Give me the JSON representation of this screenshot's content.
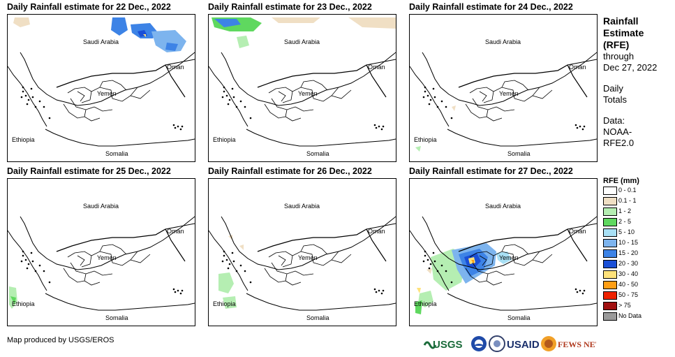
{
  "panels": [
    {
      "title": "Daily Rainfall estimate for 22 Dec., 2022"
    },
    {
      "title": "Daily Rainfall estimate for 23 Dec., 2022"
    },
    {
      "title": "Daily Rainfall estimate for 24 Dec., 2022"
    },
    {
      "title": "Daily Rainfall estimate for 25 Dec., 2022"
    },
    {
      "title": "Daily Rainfall estimate for 26 Dec., 2022"
    },
    {
      "title": "Daily Rainfall estimate for 27 Dec., 2022"
    }
  ],
  "map_labels": {
    "saudi": "Saudi Arabia",
    "oman": "Oman",
    "yemen": "Yemen",
    "ethiopia": "Ethiopia",
    "somalia": "Somalia"
  },
  "sidebar": {
    "title_line1": "Rainfall",
    "title_line2": "Estimate",
    "title_line3": "(RFE)",
    "through": "through",
    "date": "Dec 27, 2022",
    "daily": "Daily",
    "totals": "Totals",
    "data_label": "Data:",
    "data_src1": "NOAA-",
    "data_src2": "RFE2.0"
  },
  "legend": {
    "title": "RFE (mm)",
    "items": [
      {
        "label": "0 - 0.1",
        "color": "#ffffff"
      },
      {
        "label": "0.1 - 1",
        "color": "#f0dfc4"
      },
      {
        "label": "1 - 2",
        "color": "#b5eeb2"
      },
      {
        "label": "2 - 5",
        "color": "#5fd85f"
      },
      {
        "label": "5 - 10",
        "color": "#a8e0f5"
      },
      {
        "label": "10 - 15",
        "color": "#7db4ee"
      },
      {
        "label": "15 - 20",
        "color": "#3d83e6"
      },
      {
        "label": "20 - 30",
        "color": "#1a4fd6"
      },
      {
        "label": "30 - 40",
        "color": "#ffe27a"
      },
      {
        "label": "40 - 50",
        "color": "#ff9e14"
      },
      {
        "label": "50 - 75",
        "color": "#ee2200"
      },
      {
        "label": "> 75",
        "color": "#a01010"
      },
      {
        "label": "No Data",
        "color": "#9a9a9a"
      }
    ]
  },
  "credit": "Map produced by USGS/EROS",
  "logos": {
    "usgs": "USGS",
    "usaid": "USAID",
    "fews": "FEWS NET"
  }
}
